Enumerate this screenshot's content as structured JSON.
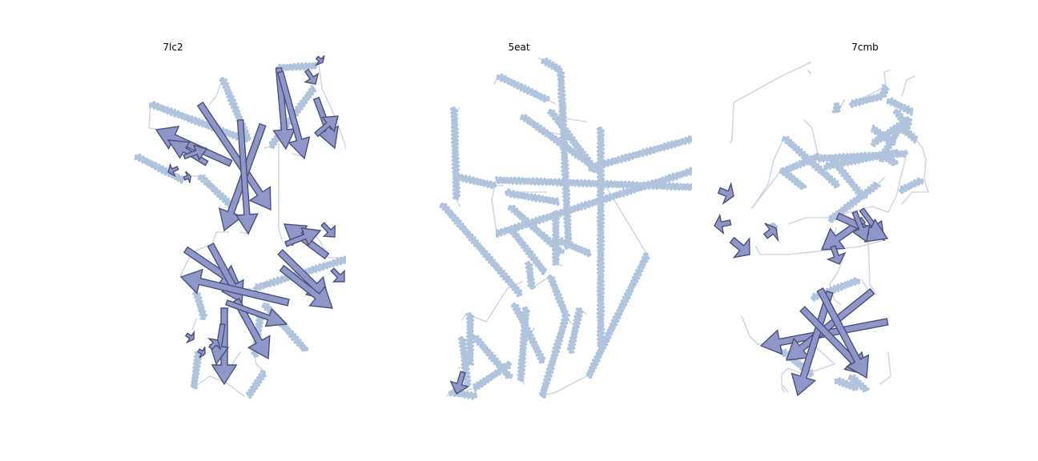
{
  "panels": [
    {
      "title": "7lc2"
    },
    {
      "title": "5eat"
    },
    {
      "title": "7cmb"
    }
  ],
  "colors": {
    "helix": "#b0c4de",
    "strand_fill": "#8f96c8",
    "strand_edge": "#4a5078",
    "loop": "#d3d6e6"
  }
}
